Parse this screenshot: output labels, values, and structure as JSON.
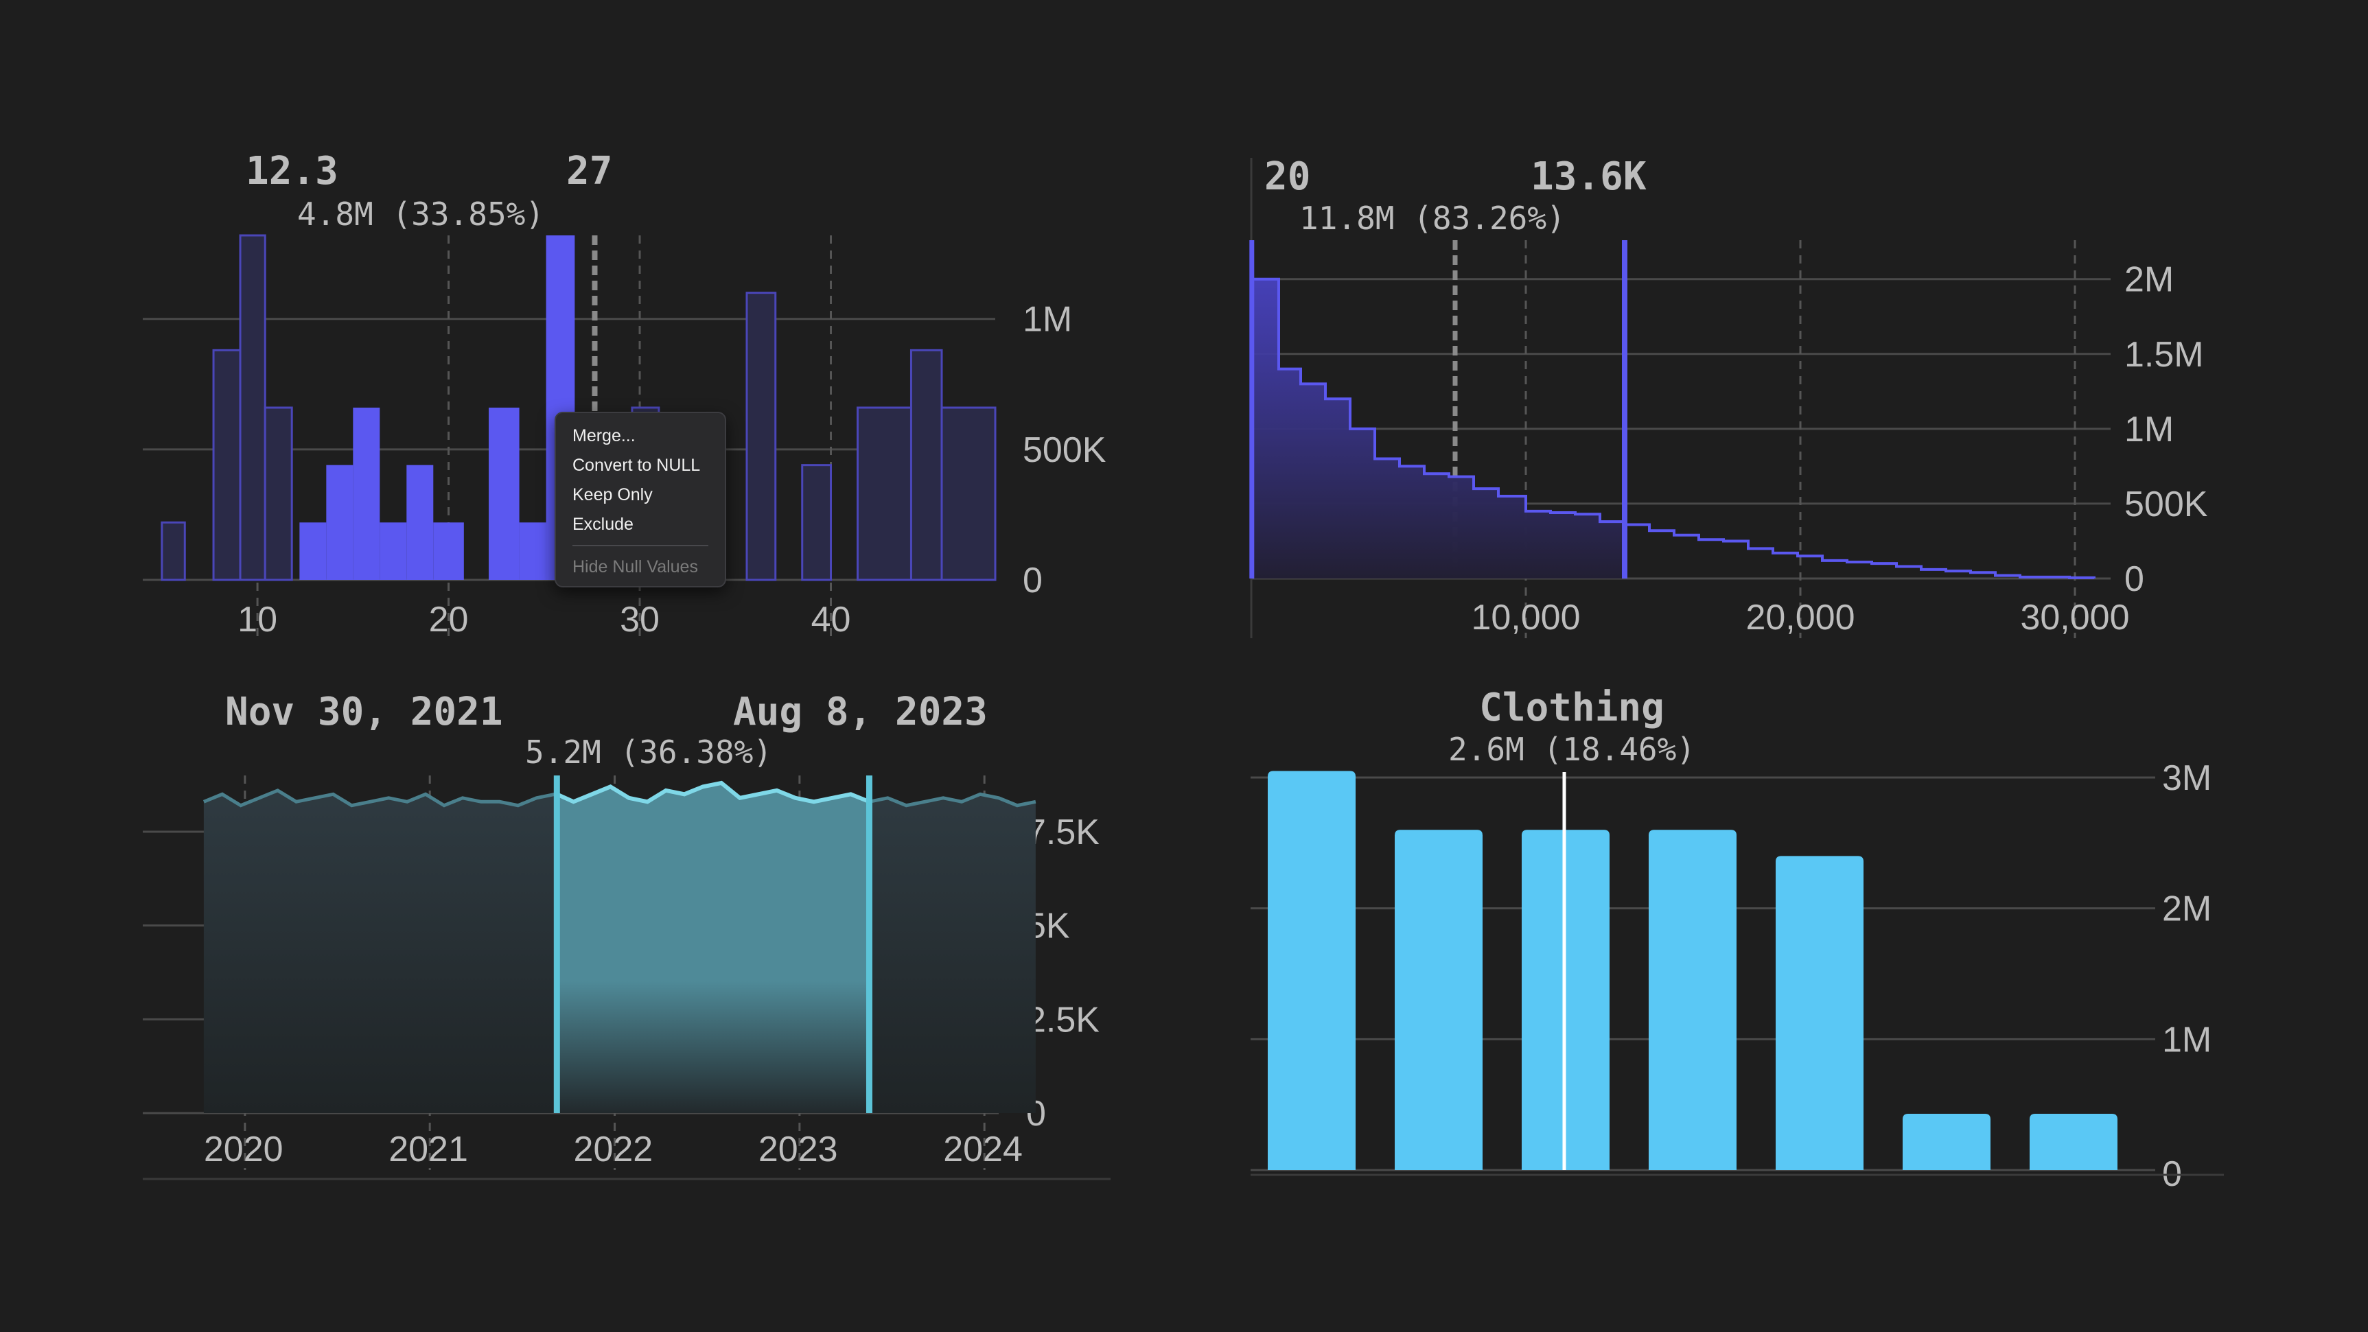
{
  "colors": {
    "background": "#1e1e1e",
    "histogram": "#5b58f0",
    "histogram_fill_dim": "#2a2a47",
    "timeseries": "#5cc4d8",
    "timeseries_fill": "#2f3a40",
    "bars": "#5ac8f5"
  },
  "chart_data": [
    {
      "type": "bar",
      "subtype": "histogram",
      "x": [
        6,
        8,
        10,
        12,
        14,
        16,
        18,
        20,
        22,
        24,
        26,
        28,
        30,
        32,
        34,
        36,
        38,
        40,
        42,
        44,
        46
      ],
      "bins": [
        {
          "x0": 5.0,
          "x1": 6.2,
          "value": 220000
        },
        {
          "x0": 7.7,
          "x1": 9.1,
          "value": 880000
        },
        {
          "x0": 9.1,
          "x1": 10.4,
          "value": 1320000
        },
        {
          "x0": 10.4,
          "x1": 11.8,
          "value": 660000
        },
        {
          "x0": 12.2,
          "x1": 13.6,
          "value": 220000
        },
        {
          "x0": 13.6,
          "x1": 15.0,
          "value": 440000
        },
        {
          "x0": 15.0,
          "x1": 16.4,
          "value": 660000
        },
        {
          "x0": 16.4,
          "x1": 17.8,
          "value": 220000
        },
        {
          "x0": 17.8,
          "x1": 19.2,
          "value": 440000
        },
        {
          "x0": 19.2,
          "x1": 20.8,
          "value": 220000
        },
        {
          "x0": 22.1,
          "x1": 23.7,
          "value": 660000
        },
        {
          "x0": 23.7,
          "x1": 25.1,
          "value": 220000
        },
        {
          "x0": 25.1,
          "x1": 26.6,
          "value": 1320000
        },
        {
          "x0": 28.0,
          "x1": 29.6,
          "value": 640000
        },
        {
          "x0": 29.6,
          "x1": 31.0,
          "value": 660000
        },
        {
          "x0": 35.6,
          "x1": 37.1,
          "value": 1100000
        },
        {
          "x0": 38.5,
          "x1": 40.0,
          "value": 440000
        },
        {
          "x0": 41.4,
          "x1": 44.2,
          "value": 660000
        },
        {
          "x0": 44.2,
          "x1": 45.8,
          "value": 880000
        },
        {
          "x0": 45.8,
          "x1": 48.6,
          "value": 660000
        }
      ],
      "selection": {
        "from": 12.3,
        "to": 27,
        "from_label": "12.3",
        "to_label": "27"
      },
      "summary": "4.8M (33.85%)",
      "x_ticks": [
        10,
        20,
        30,
        40
      ],
      "x_tick_labels": [
        "10",
        "20",
        "30",
        "40"
      ],
      "xlim": [
        4,
        48.6
      ],
      "ylim": [
        0,
        1320000
      ],
      "y_ticks": [
        0,
        500000,
        1000000
      ],
      "y_tick_labels": [
        "0",
        "500K",
        "1M"
      ],
      "grid": true
    },
    {
      "type": "area",
      "subtype": "step-histogram",
      "x": [
        0,
        1000,
        1800,
        2700,
        3600,
        4500,
        5400,
        6300,
        7200,
        8100,
        9000,
        10000,
        10900,
        11800,
        12700,
        13600,
        14500,
        15400,
        16300,
        17200,
        18100,
        19000,
        19900,
        20800,
        21700,
        22600,
        23500,
        24400,
        25300,
        26200,
        27100,
        28000,
        28900,
        29800,
        30700
      ],
      "values": [
        2000000,
        1400000,
        1300000,
        1200000,
        1000000,
        800000,
        750000,
        700000,
        680000,
        600000,
        550000,
        450000,
        440000,
        430000,
        380000,
        360000,
        320000,
        290000,
        260000,
        250000,
        200000,
        170000,
        150000,
        120000,
        110000,
        100000,
        80000,
        60000,
        50000,
        40000,
        20000,
        10000,
        10000,
        5000,
        0
      ],
      "selection": {
        "from": 20,
        "to": 13600,
        "from_label": "20",
        "to_label": "13.6K"
      },
      "summary": "11.8M (83.26%)",
      "x_ticks": [
        10000,
        20000,
        30000
      ],
      "x_tick_labels": [
        "10,000",
        "20,000",
        "30,000"
      ],
      "xlim": [
        0,
        31300
      ],
      "ylim": [
        0,
        2000000
      ],
      "y_ticks": [
        0,
        500000,
        1000000,
        1500000,
        2000000
      ],
      "y_tick_labels": [
        "0",
        "500K",
        "1M",
        "1.5M",
        "2M"
      ],
      "grid": true
    },
    {
      "type": "area",
      "subtype": "timeseries",
      "x": [
        2020.0,
        2020.1,
        2020.2,
        2020.3,
        2020.4,
        2020.5,
        2020.6,
        2020.7,
        2020.8,
        2020.9,
        2021.0,
        2021.1,
        2021.2,
        2021.3,
        2021.4,
        2021.5,
        2021.6,
        2021.7,
        2021.8,
        2021.9,
        2022.0,
        2022.1,
        2022.2,
        2022.3,
        2022.4,
        2022.5,
        2022.6,
        2022.7,
        2022.8,
        2022.9,
        2023.0,
        2023.1,
        2023.2,
        2023.3,
        2023.4,
        2023.5,
        2023.6,
        2023.7,
        2023.8,
        2023.9,
        2024.0,
        2024.1,
        2024.2,
        2024.3,
        2024.4,
        2024.5
      ],
      "values": [
        8300,
        8500,
        8200,
        8400,
        8600,
        8300,
        8400,
        8500,
        8200,
        8300,
        8400,
        8300,
        8500,
        8200,
        8400,
        8300,
        8300,
        8200,
        8400,
        8500,
        8300,
        8500,
        8700,
        8400,
        8300,
        8600,
        8500,
        8700,
        8800,
        8400,
        8500,
        8600,
        8400,
        8300,
        8400,
        8500,
        8300,
        8400,
        8200,
        8300,
        8400,
        8300,
        8500,
        8400,
        8200,
        8300
      ],
      "selection": {
        "from": 2021.91,
        "to": 2023.6,
        "from_label": "Nov 30, 2021",
        "to_label": "Aug 8, 2023"
      },
      "summary": "5.2M (36.38%)",
      "x_ticks": [
        2020,
        2021,
        2022,
        2023,
        2024
      ],
      "x_tick_labels": [
        "2020",
        "2021",
        "2022",
        "2023",
        "2024"
      ],
      "xlim": [
        2019.67,
        2024.3
      ],
      "ylim": [
        0,
        9000
      ],
      "y_ticks": [
        0,
        2500,
        5000,
        7500
      ],
      "y_tick_labels": [
        "0",
        "2.5K",
        "5K",
        "7.5K"
      ],
      "grid": true
    },
    {
      "type": "bar",
      "values": [
        3050000,
        2600000,
        2600000,
        2600000,
        2400000,
        430000,
        430000
      ],
      "highlight_label": "Clothing",
      "highlight_index": 2,
      "summary": "2.6M (18.46%)",
      "ylim": [
        0,
        3000000
      ],
      "y_ticks": [
        0,
        1000000,
        2000000,
        3000000
      ],
      "y_tick_labels": [
        "0",
        "1M",
        "2M",
        "3M"
      ],
      "grid": true
    }
  ],
  "context_menu": {
    "items": [
      "Merge...",
      "Convert to NULL",
      "Keep Only",
      "Exclude"
    ],
    "disabled_item": "Hide Null Values"
  }
}
